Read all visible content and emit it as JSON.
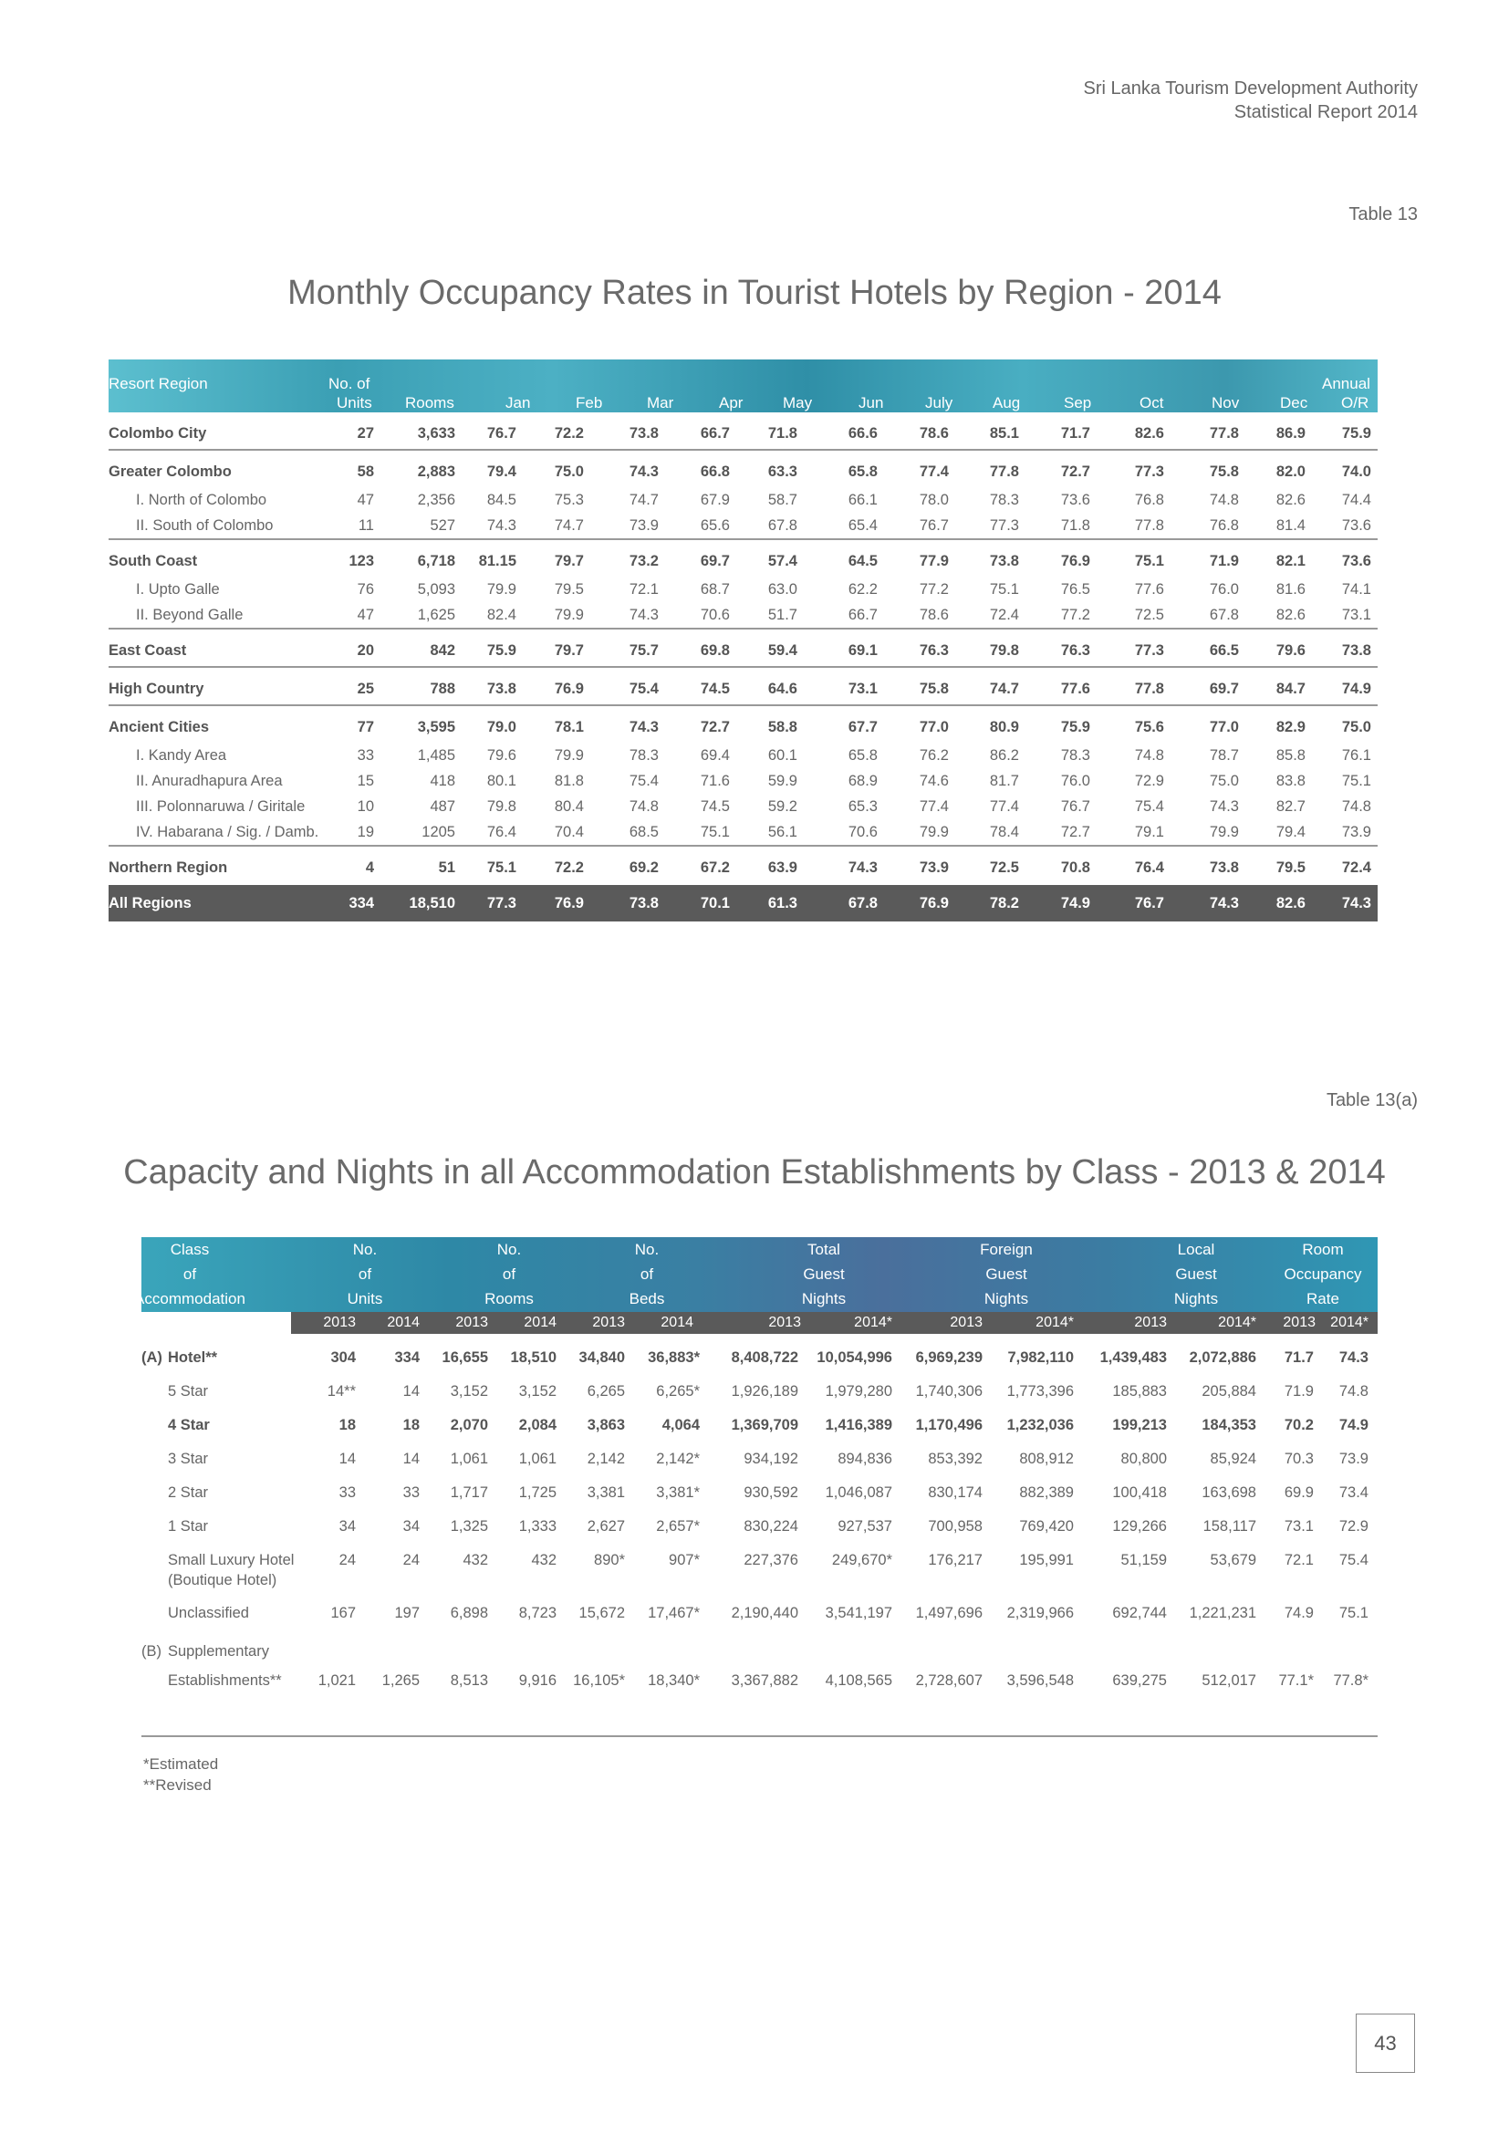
{
  "header": {
    "line1": "Sri Lanka Tourism Development Authority",
    "line2": "Statistical Report 2014"
  },
  "table13": {
    "label": "Table 13",
    "title": "Monthly Occupancy Rates in Tourist Hotels by Region - 2014",
    "head": {
      "region": "Resort Region",
      "units1": "No. of",
      "units2": "Units",
      "rooms": "Rooms",
      "jan": "Jan",
      "feb": "Feb",
      "mar": "Mar",
      "apr": "Apr",
      "may": "May",
      "jun": "Jun",
      "jul": "July",
      "aug": "Aug",
      "sep": "Sep",
      "oct": "Oct",
      "nov": "Nov",
      "dec": "Dec",
      "annual1": "Annual",
      "annual2": "O/R"
    },
    "rows": [
      {
        "name": "Colombo City",
        "type": "main",
        "v": [
          "27",
          "3,633",
          "76.7",
          "72.2",
          "73.8",
          "66.7",
          "71.8",
          "66.6",
          "78.6",
          "85.1",
          "71.7",
          "82.6",
          "77.8",
          "86.9",
          "75.9"
        ]
      },
      {
        "name": "Greater Colombo",
        "type": "main sep",
        "v": [
          "58",
          "2,883",
          "79.4",
          "75.0",
          "74.3",
          "66.8",
          "63.3",
          "65.8",
          "77.4",
          "77.8",
          "72.7",
          "77.3",
          "75.8",
          "82.0",
          "74.0"
        ]
      },
      {
        "name": "I.   North of Colombo",
        "type": "sub",
        "v": [
          "47",
          "2,356",
          "84.5",
          "75.3",
          "74.7",
          "67.9",
          "58.7",
          "66.1",
          "78.0",
          "78.3",
          "73.6",
          "76.8",
          "74.8",
          "82.6",
          "74.4"
        ]
      },
      {
        "name": "II.  South of Colombo",
        "type": "sub",
        "v": [
          "11",
          "527",
          "74.3",
          "74.7",
          "73.9",
          "65.6",
          "67.8",
          "65.4",
          "76.7",
          "77.3",
          "71.8",
          "77.8",
          "76.8",
          "81.4",
          "73.6"
        ]
      },
      {
        "name": "South Coast",
        "type": "main sep",
        "v": [
          "123",
          "6,718",
          "81.15",
          "79.7",
          "73.2",
          "69.7",
          "57.4",
          "64.5",
          "77.9",
          "73.8",
          "76.9",
          "75.1",
          "71.9",
          "82.1",
          "73.6"
        ]
      },
      {
        "name": "I.   Upto Galle",
        "type": "sub",
        "v": [
          "76",
          "5,093",
          "79.9",
          "79.5",
          "72.1",
          "68.7",
          "63.0",
          "62.2",
          "77.2",
          "75.1",
          "76.5",
          "77.6",
          "76.0",
          "81.6",
          "74.1"
        ]
      },
      {
        "name": "II.  Beyond Galle",
        "type": "sub",
        "v": [
          "47",
          "1,625",
          "82.4",
          "79.9",
          "74.3",
          "70.6",
          "51.7",
          "66.7",
          "78.6",
          "72.4",
          "77.2",
          "72.5",
          "67.8",
          "82.6",
          "73.1"
        ]
      },
      {
        "name": "East Coast",
        "type": "main sep",
        "v": [
          "20",
          "842",
          "75.9",
          "79.7",
          "75.7",
          "69.8",
          "59.4",
          "69.1",
          "76.3",
          "79.8",
          "76.3",
          "77.3",
          "66.5",
          "79.6",
          "73.8"
        ]
      },
      {
        "name": "High Country",
        "type": "main sep",
        "v": [
          "25",
          "788",
          "73.8",
          "76.9",
          "75.4",
          "74.5",
          "64.6",
          "73.1",
          "75.8",
          "74.7",
          "77.6",
          "77.8",
          "69.7",
          "84.7",
          "74.9"
        ]
      },
      {
        "name": "Ancient Cities",
        "type": "main sep",
        "v": [
          "77",
          "3,595",
          "79.0",
          "78.1",
          "74.3",
          "72.7",
          "58.8",
          "67.7",
          "77.0",
          "80.9",
          "75.9",
          "75.6",
          "77.0",
          "82.9",
          "75.0"
        ]
      },
      {
        "name": "I.   Kandy Area",
        "type": "sub",
        "v": [
          "33",
          "1,485",
          "79.6",
          "79.9",
          "78.3",
          "69.4",
          "60.1",
          "65.8",
          "76.2",
          "86.2",
          "78.3",
          "74.8",
          "78.7",
          "85.8",
          "76.1"
        ]
      },
      {
        "name": "II.  Anuradhapura Area",
        "type": "sub",
        "v": [
          "15",
          "418",
          "80.1",
          "81.8",
          "75.4",
          "71.6",
          "59.9",
          "68.9",
          "74.6",
          "81.7",
          "76.0",
          "72.9",
          "75.0",
          "83.8",
          "75.1"
        ]
      },
      {
        "name": "III. Polonnaruwa / Giritale",
        "type": "sub",
        "v": [
          "10",
          "487",
          "79.8",
          "80.4",
          "74.8",
          "74.5",
          "59.2",
          "65.3",
          "77.4",
          "77.4",
          "76.7",
          "75.4",
          "74.3",
          "82.7",
          "74.8"
        ]
      },
      {
        "name": "IV. Habarana / Sig. / Damb.",
        "type": "sub",
        "v": [
          "19",
          "1205",
          "76.4",
          "70.4",
          "68.5",
          "75.1",
          "56.1",
          "70.6",
          "79.9",
          "78.4",
          "72.7",
          "79.1",
          "79.9",
          "79.4",
          "73.9"
        ]
      },
      {
        "name": "Northern Region",
        "type": "main sep",
        "v": [
          "4",
          "51",
          "75.1",
          "72.2",
          "69.2",
          "67.2",
          "63.9",
          "74.3",
          "73.9",
          "72.5",
          "70.8",
          "76.4",
          "73.8",
          "79.5",
          "72.4"
        ]
      },
      {
        "name": "All Regions",
        "type": "total",
        "v": [
          "334",
          "18,510",
          "77.3",
          "76.9",
          "73.8",
          "70.1",
          "61.3",
          "67.8",
          "76.9",
          "78.2",
          "74.9",
          "76.7",
          "74.3",
          "82.6",
          "74.3"
        ]
      }
    ]
  },
  "table13a": {
    "label": "Table 13(a)",
    "title": "Capacity and Nights in all Accommodation Establishments by Class - 2013 & 2014",
    "mark": ",,",
    "head": [
      [
        "Class",
        "of",
        "Accommodation"
      ],
      [
        "No.",
        "of",
        "Units"
      ],
      [
        "No.",
        "of",
        "Rooms"
      ],
      [
        "No.",
        "of",
        "Beds"
      ],
      [
        "Total",
        "Guest",
        "Nights"
      ],
      [
        "Foreign",
        "Guest",
        "Nights"
      ],
      [
        "Local",
        "Guest",
        "Nights"
      ],
      [
        "Room",
        "Occupancy",
        "Rate"
      ]
    ],
    "years": [
      "2013",
      "2014",
      "2013",
      "2014",
      "2013",
      "2014",
      "2013",
      "2014*",
      "2013",
      "2014*",
      "2013",
      "2014*",
      "2013",
      "2014*"
    ],
    "rows": [
      {
        "prefix": "(A)",
        "name": "Hotel**",
        "bold": true,
        "v": [
          "304",
          "334",
          "16,655",
          "18,510",
          "34,840",
          "36,883*",
          "8,408,722",
          "10,054,996",
          "6,969,239",
          "7,982,110",
          "1,439,483",
          "2,072,886",
          "71.7",
          "74.3"
        ]
      },
      {
        "prefix": "",
        "name": "5 Star",
        "bold": false,
        "v": [
          "14**",
          "14",
          "3,152",
          "3,152",
          "6,265",
          "6,265*",
          "1,926,189",
          "1,979,280",
          "1,740,306",
          "1,773,396",
          "185,883",
          "205,884",
          "71.9",
          "74.8"
        ]
      },
      {
        "prefix": "",
        "name": "4 Star",
        "bold": true,
        "v": [
          "18",
          "18",
          "2,070",
          "2,084",
          "3,863",
          "4,064",
          "1,369,709",
          "1,416,389",
          "1,170,496",
          "1,232,036",
          "199,213",
          "184,353",
          "70.2",
          "74.9"
        ]
      },
      {
        "prefix": "",
        "name": "3 Star",
        "bold": false,
        "v": [
          "14",
          "14",
          "1,061",
          "1,061",
          "2,142",
          "2,142*",
          "934,192",
          "894,836",
          "853,392",
          "808,912",
          "80,800",
          "85,924",
          "70.3",
          "73.9"
        ]
      },
      {
        "prefix": "",
        "name": "2 Star",
        "bold": false,
        "v": [
          "33",
          "33",
          "1,717",
          "1,725",
          "3,381",
          "3,381*",
          "930,592",
          "1,046,087",
          "830,174",
          "882,389",
          "100,418",
          "163,698",
          "69.9",
          "73.4"
        ]
      },
      {
        "prefix": "",
        "name": "1 Star",
        "bold": false,
        "v": [
          "34",
          "34",
          "1,325",
          "1,333",
          "2,627",
          "2,657*",
          "830,224",
          "927,537",
          "700,958",
          "769,420",
          "129,266",
          "158,117",
          "73.1",
          "72.9"
        ]
      },
      {
        "prefix": "",
        "name": "Small Luxury Hotel",
        "name2": "(Boutique Hotel)",
        "bold": false,
        "v": [
          "24",
          "24",
          "432",
          "432",
          "890*",
          "907*",
          "227,376",
          "249,670*",
          "176,217",
          "195,991",
          "51,159",
          "53,679",
          "72.1",
          "75.4"
        ]
      },
      {
        "prefix": "",
        "name": "Unclassified",
        "bold": false,
        "v": [
          "167",
          "197",
          "6,898",
          "8,723",
          "15,672",
          "17,467*",
          "2,190,440",
          "3,541,197",
          "1,497,696",
          "2,319,966",
          "692,744",
          "1,221,231",
          "74.9",
          "75.1"
        ]
      },
      {
        "prefix": "(B)",
        "name": "Supplementary",
        "bold": false,
        "v": []
      },
      {
        "prefix": "",
        "name": "Establishments**",
        "bold": false,
        "v": [
          "1,021",
          "1,265",
          "8,513",
          "9,916",
          "16,105*",
          "18,340*",
          "3,367,882",
          "4,108,565",
          "2,728,607",
          "3,596,548",
          "639,275",
          "512,017",
          "77.1*",
          "77.8*"
        ]
      }
    ]
  },
  "footnotes": [
    "*Estimated",
    "**Revised"
  ],
  "page_number": "43"
}
